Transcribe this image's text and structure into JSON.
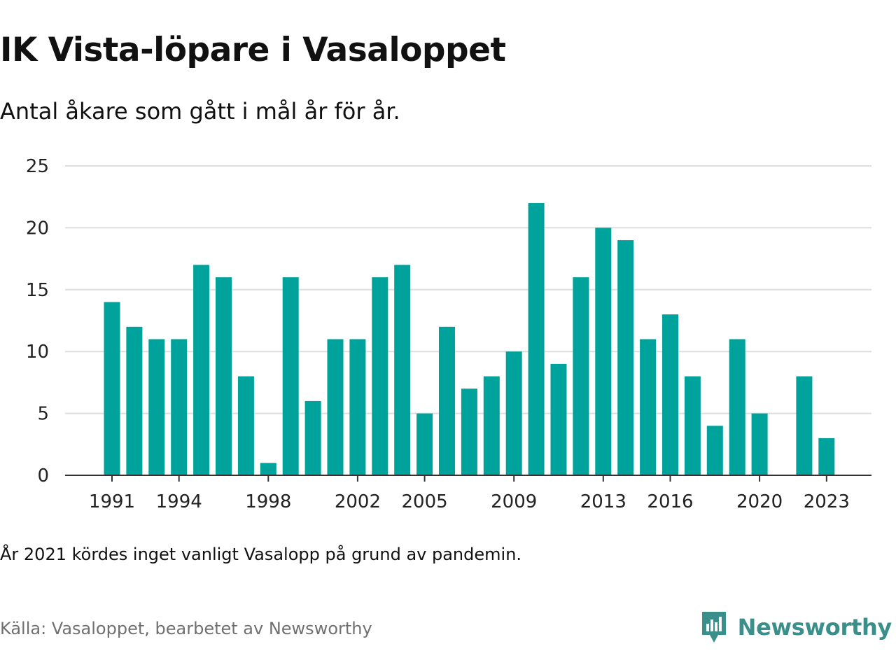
{
  "title": "IK Vista-löpare i Vasaloppet",
  "subtitle": "Antal åkare som gått i mål år för år.",
  "note": "År 2021 kördes inget vanligt Vasalopp på grund av pandemin.",
  "source": "Källa: Vasaloppet, bearbetet av Newsworthy",
  "brand": {
    "name": "Newsworthy",
    "icon": "newsworthy-logo-icon",
    "color": "#3a8f8a"
  },
  "colors": {
    "bar": "#00a39b",
    "grid": "#dddddd",
    "axis": "#333333"
  },
  "chart_data": {
    "type": "bar",
    "title": "IK Vista-löpare i Vasaloppet",
    "subtitle": "Antal åkare som gått i mål år för år.",
    "xlabel": "",
    "ylabel": "",
    "ylim": [
      0,
      25
    ],
    "yticks": [
      "0",
      "5",
      "10",
      "15",
      "20",
      "25"
    ],
    "xticks": [
      "1991",
      "1994",
      "1998",
      "2002",
      "2005",
      "2009",
      "2013",
      "2016",
      "2020",
      "2023"
    ],
    "grid": true,
    "legend": "none",
    "categories": [
      1991,
      1992,
      1993,
      1994,
      1995,
      1996,
      1997,
      1998,
      1999,
      2000,
      2001,
      2002,
      2003,
      2004,
      2005,
      2006,
      2007,
      2008,
      2009,
      2010,
      2011,
      2012,
      2013,
      2014,
      2015,
      2016,
      2017,
      2018,
      2019,
      2020,
      2021,
      2022,
      2023
    ],
    "values": [
      14,
      12,
      11,
      11,
      17,
      16,
      8,
      1,
      16,
      6,
      11,
      11,
      16,
      17,
      5,
      12,
      7,
      8,
      10,
      22,
      9,
      16,
      20,
      19,
      11,
      13,
      8,
      4,
      11,
      5,
      null,
      8,
      3
    ]
  }
}
